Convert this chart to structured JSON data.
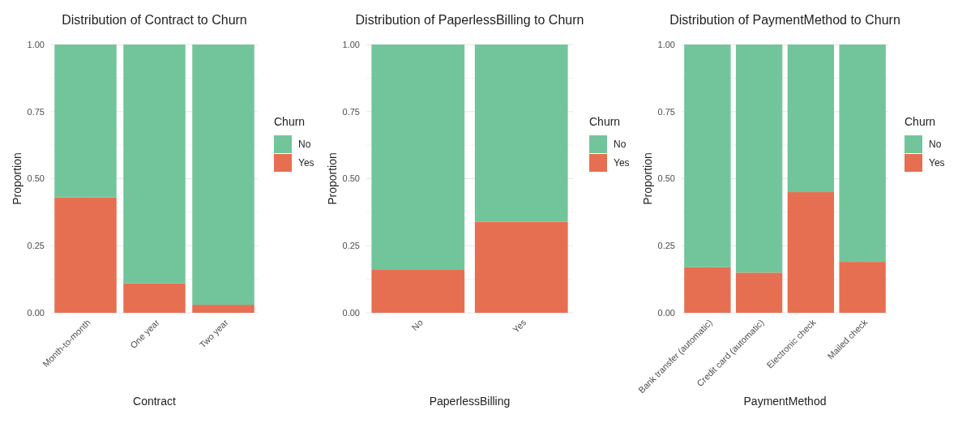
{
  "chart_data": [
    {
      "type": "bar",
      "stacked": true,
      "title": "Distribution of Contract to Churn",
      "xlabel": "Contract",
      "ylabel": "Proportion",
      "legend_title": "Churn",
      "legend": "right",
      "grid": true,
      "categories": [
        "Month-to-month",
        "One year",
        "Two year"
      ],
      "ylim": [
        0,
        1
      ],
      "yticks": [
        {
          "value": 0,
          "label": "0.00"
        },
        {
          "value": 0.25,
          "label": "0.25"
        },
        {
          "value": 0.5,
          "label": "0.50"
        },
        {
          "value": 0.75,
          "label": "0.75"
        },
        {
          "value": 1,
          "label": "1.00"
        }
      ],
      "series": [
        {
          "name": "Yes",
          "color": "#e76f51",
          "values": [
            0.43,
            0.11,
            0.03
          ]
        },
        {
          "name": "No",
          "color": "#72c59b",
          "values": [
            0.57,
            0.89,
            0.97
          ]
        }
      ]
    },
    {
      "type": "bar",
      "stacked": true,
      "title": "Distribution of PaperlessBilling to Churn",
      "xlabel": "PaperlessBilling",
      "ylabel": "Proportion",
      "legend_title": "Churn",
      "legend": "right",
      "grid": true,
      "categories": [
        "No",
        "Yes"
      ],
      "ylim": [
        0,
        1
      ],
      "yticks": [
        {
          "value": 0,
          "label": "0.00"
        },
        {
          "value": 0.25,
          "label": "0.25"
        },
        {
          "value": 0.5,
          "label": "0.50"
        },
        {
          "value": 0.75,
          "label": "0.75"
        },
        {
          "value": 1,
          "label": "1.00"
        }
      ],
      "series": [
        {
          "name": "Yes",
          "color": "#e76f51",
          "values": [
            0.16,
            0.34
          ]
        },
        {
          "name": "No",
          "color": "#72c59b",
          "values": [
            0.84,
            0.66
          ]
        }
      ]
    },
    {
      "type": "bar",
      "stacked": true,
      "title": "Distribution of PaymentMethod to Churn",
      "xlabel": "PaymentMethod",
      "ylabel": "Proportion",
      "legend_title": "Churn",
      "legend": "right",
      "grid": true,
      "categories": [
        "Bank transfer (automatic)",
        "Credit card (automatic)",
        "Electronic check",
        "Mailed check"
      ],
      "ylim": [
        0,
        1
      ],
      "yticks": [
        {
          "value": 0,
          "label": "0.00"
        },
        {
          "value": 0.25,
          "label": "0.25"
        },
        {
          "value": 0.5,
          "label": "0.50"
        },
        {
          "value": 0.75,
          "label": "0.75"
        },
        {
          "value": 1,
          "label": "1.00"
        }
      ],
      "series": [
        {
          "name": "Yes",
          "color": "#e76f51",
          "values": [
            0.17,
            0.15,
            0.45,
            0.19
          ]
        },
        {
          "name": "No",
          "color": "#72c59b",
          "values": [
            0.83,
            0.85,
            0.55,
            0.81
          ]
        }
      ]
    }
  ]
}
